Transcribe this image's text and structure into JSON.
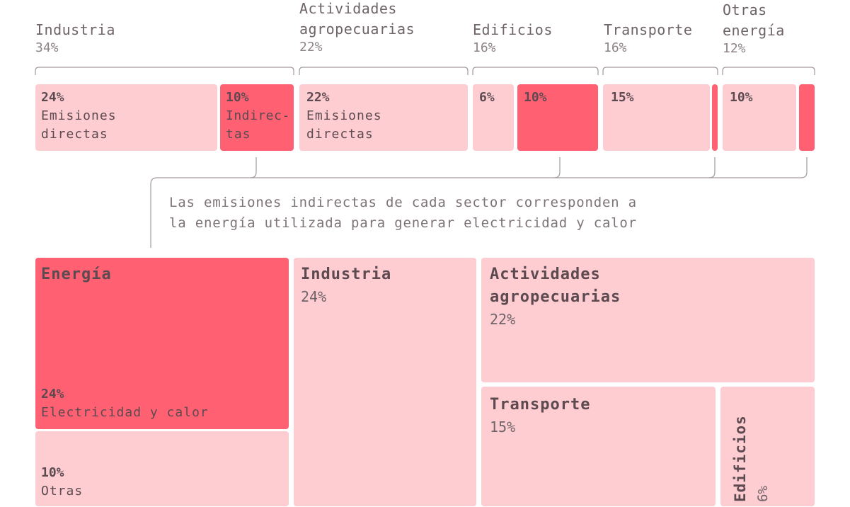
{
  "colors": {
    "light": "#fdcdd2",
    "dark": "#ff6173",
    "line": "#a49a9e"
  },
  "sectors": [
    {
      "name_lines": [
        "Industria"
      ],
      "pct": "34%"
    },
    {
      "name_lines": [
        "Actividades",
        "agropecuarias"
      ],
      "pct": "22%"
    },
    {
      "name_lines": [
        "Edificios"
      ],
      "pct": "16%"
    },
    {
      "name_lines": [
        "Transporte"
      ],
      "pct": "16%"
    },
    {
      "name_lines": [
        "Otras",
        "energía"
      ],
      "pct": "12%"
    }
  ],
  "bars": {
    "industria": {
      "direct_value": "24%",
      "direct_label_lines": [
        "Emisiones",
        "directas"
      ],
      "indirect_value": "10%",
      "indirect_label_lines": [
        "Indirec-",
        "tas"
      ]
    },
    "agro": {
      "direct_value": "22%",
      "direct_label_lines": [
        "Emisiones",
        "directas"
      ]
    },
    "edificios": {
      "direct_value": "6%",
      "indirect_value": "10%"
    },
    "transporte": {
      "direct_value": "15%"
    },
    "otras": {
      "direct_value": "10%"
    }
  },
  "note_lines": [
    "Las emisiones indirectas de cada sector corresponden a",
    "la energía utilizada para generar electricidad y calor"
  ],
  "treemap": {
    "energia": {
      "name": "Energía",
      "elec_value": "24%",
      "elec_label": "Electricidad y calor",
      "otras_value": "10%",
      "otras_label": "Otras"
    },
    "industria": {
      "name": "Industria",
      "pct": "24%"
    },
    "agro": {
      "name_lines": [
        "Actividades",
        "agropecuarias"
      ],
      "pct": "22%"
    },
    "transporte": {
      "name": "Transporte",
      "pct": "15%"
    },
    "edificios": {
      "name": "Edificios",
      "pct": "6%"
    }
  }
}
